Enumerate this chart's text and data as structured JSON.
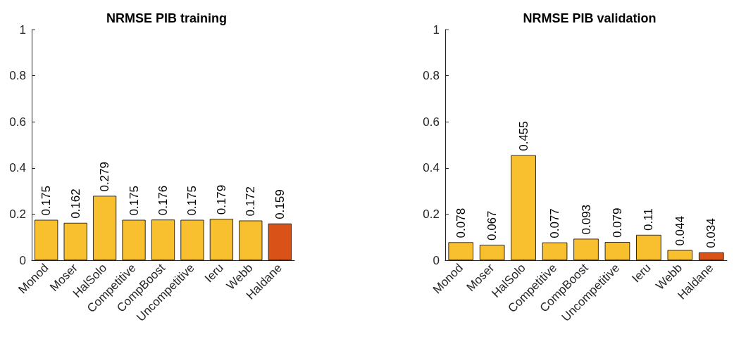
{
  "chart_data": [
    {
      "type": "bar",
      "title": "NRMSE PIB training",
      "categories": [
        "Monod",
        "Moser",
        "HalSolo",
        "Competitive",
        "CompBoost",
        "Uncompetitive",
        "Ieru",
        "Webb",
        "Haldane"
      ],
      "values": [
        0.175,
        0.162,
        0.279,
        0.175,
        0.176,
        0.175,
        0.179,
        0.172,
        0.159
      ],
      "colors": [
        "#f8bf2e",
        "#f8bf2e",
        "#f8bf2e",
        "#f8bf2e",
        "#f8bf2e",
        "#f8bf2e",
        "#f8bf2e",
        "#f8bf2e",
        "#d95319"
      ],
      "ylim": [
        0,
        1
      ],
      "yticks": [
        0,
        0.2,
        0.4,
        0.6,
        0.8,
        1
      ],
      "data_labels": true
    },
    {
      "type": "bar",
      "title": "NRMSE PIB validation",
      "categories": [
        "Monod",
        "Moser",
        "HalSolo",
        "Competitive",
        "CompBoost",
        "Uncompetitive",
        "Ieru",
        "Webb",
        "Haldane"
      ],
      "values": [
        0.078,
        0.067,
        0.455,
        0.077,
        0.093,
        0.079,
        0.11,
        0.044,
        0.034
      ],
      "colors": [
        "#f8bf2e",
        "#f8bf2e",
        "#f8bf2e",
        "#f8bf2e",
        "#f8bf2e",
        "#f8bf2e",
        "#f8bf2e",
        "#f8bf2e",
        "#d95319"
      ],
      "ylim": [
        0,
        1
      ],
      "yticks": [
        0,
        0.2,
        0.4,
        0.6,
        0.8,
        1
      ],
      "data_labels": true
    }
  ]
}
